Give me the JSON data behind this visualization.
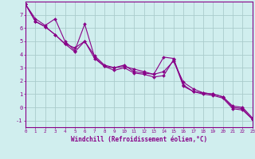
{
  "xlabel": "Windchill (Refroidissement éolien,°C)",
  "bg_color": "#d0eeee",
  "line_color": "#880088",
  "grid_color": "#aacccc",
  "xlim": [
    0,
    23
  ],
  "ylim": [
    -1.5,
    8.0
  ],
  "yticks": [
    -1,
    0,
    1,
    2,
    3,
    4,
    5,
    6,
    7
  ],
  "xticks": [
    0,
    1,
    2,
    3,
    4,
    5,
    6,
    7,
    8,
    9,
    10,
    11,
    12,
    13,
    14,
    15,
    16,
    17,
    18,
    19,
    20,
    21,
    22,
    23
  ],
  "series1_x": [
    0,
    1,
    2,
    3,
    4,
    5,
    6,
    7,
    8,
    9,
    10,
    11,
    12,
    13,
    14,
    15,
    16,
    17,
    18,
    19,
    20,
    21,
    22,
    23
  ],
  "series1_y": [
    7.8,
    6.7,
    6.2,
    6.7,
    5.0,
    4.3,
    6.3,
    3.8,
    3.1,
    3.0,
    3.2,
    2.7,
    2.6,
    2.5,
    3.8,
    3.7,
    1.7,
    1.2,
    1.1,
    1.0,
    0.8,
    0.0,
    -0.1,
    -0.9
  ],
  "series2_x": [
    0,
    1,
    2,
    3,
    4,
    5,
    6,
    7,
    8,
    9,
    10,
    11,
    12,
    13,
    14,
    15,
    16,
    17,
    18,
    19,
    20,
    21,
    22,
    23
  ],
  "series2_y": [
    7.8,
    6.5,
    6.1,
    5.5,
    4.8,
    4.2,
    5.0,
    3.7,
    3.1,
    2.8,
    3.0,
    2.6,
    2.5,
    2.3,
    2.4,
    3.6,
    1.6,
    1.2,
    1.0,
    0.9,
    0.7,
    -0.1,
    -0.2,
    -0.9
  ],
  "series3_x": [
    0,
    1,
    2,
    3,
    4,
    5,
    6,
    7,
    8,
    9,
    10,
    11,
    12,
    13,
    14,
    15,
    16,
    17,
    18,
    19,
    20,
    21,
    22,
    23
  ],
  "series3_y": [
    7.8,
    6.5,
    6.1,
    5.5,
    4.8,
    4.5,
    5.0,
    3.9,
    3.2,
    3.0,
    3.1,
    2.9,
    2.7,
    2.5,
    2.7,
    3.5,
    1.9,
    1.4,
    1.1,
    1.0,
    0.8,
    0.1,
    0.0,
    -0.8
  ]
}
